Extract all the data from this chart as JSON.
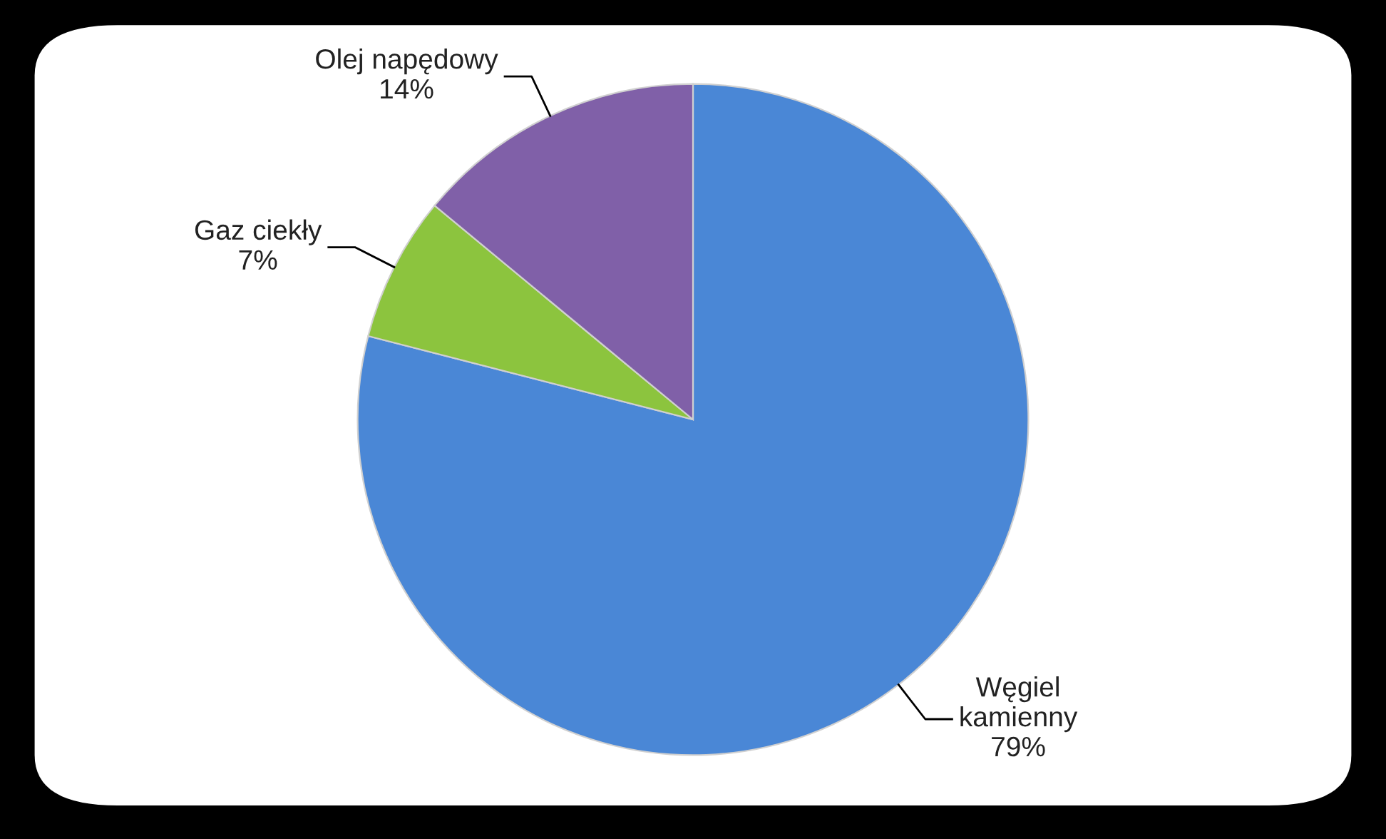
{
  "chart_data": {
    "type": "pie",
    "categories": [
      "Węgiel\nkamienny",
      "Gaz ciekły",
      "Olej napędowy"
    ],
    "values": [
      79,
      7,
      14
    ],
    "colors": [
      "#4a87d6",
      "#8cc43e",
      "#8060a8"
    ],
    "value_labels": [
      "79%",
      "7%",
      "14%"
    ]
  }
}
